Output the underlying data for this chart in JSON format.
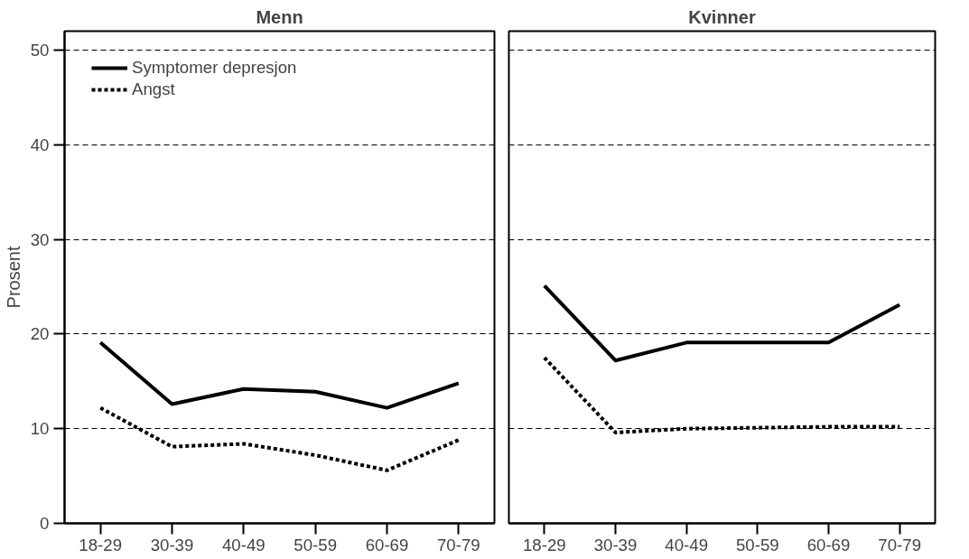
{
  "chart_data": [
    {
      "type": "line",
      "title": "Menn",
      "ylabel": "Prosent",
      "categories": [
        "18-29",
        "30-39",
        "40-49",
        "50-59",
        "60-69",
        "70-79"
      ],
      "ylim": [
        0,
        52
      ],
      "yticks": [
        0,
        10,
        20,
        30,
        40,
        50
      ],
      "grid": "y",
      "legend": "top left",
      "series": [
        {
          "name": "Symptomer depresjon",
          "color": "#000000",
          "line_style": "solid",
          "values": [
            19.1,
            12.6,
            14.2,
            13.9,
            12.2,
            14.8
          ]
        },
        {
          "name": "Angst",
          "color": "#000000",
          "line_style": "dotted",
          "values": [
            12.2,
            8.1,
            8.4,
            7.2,
            5.6,
            8.8
          ]
        }
      ]
    },
    {
      "type": "line",
      "title": "Kvinner",
      "categories": [
        "18-29",
        "30-39",
        "40-49",
        "50-59",
        "60-69",
        "70-79"
      ],
      "ylim": [
        0,
        52
      ],
      "yticks": [
        0,
        10,
        20,
        30,
        40,
        50
      ],
      "grid": "y",
      "tick_labels": "x",
      "series": [
        {
          "color": "#000000",
          "line_style": "solid",
          "values": [
            25.1,
            17.2,
            19.1,
            19.1,
            19.1,
            23.1
          ]
        },
        {
          "color": "#000000",
          "line_style": "dotted",
          "values": [
            17.5,
            9.6,
            10.0,
            10.1,
            10.2,
            10.2
          ]
        }
      ]
    }
  ]
}
